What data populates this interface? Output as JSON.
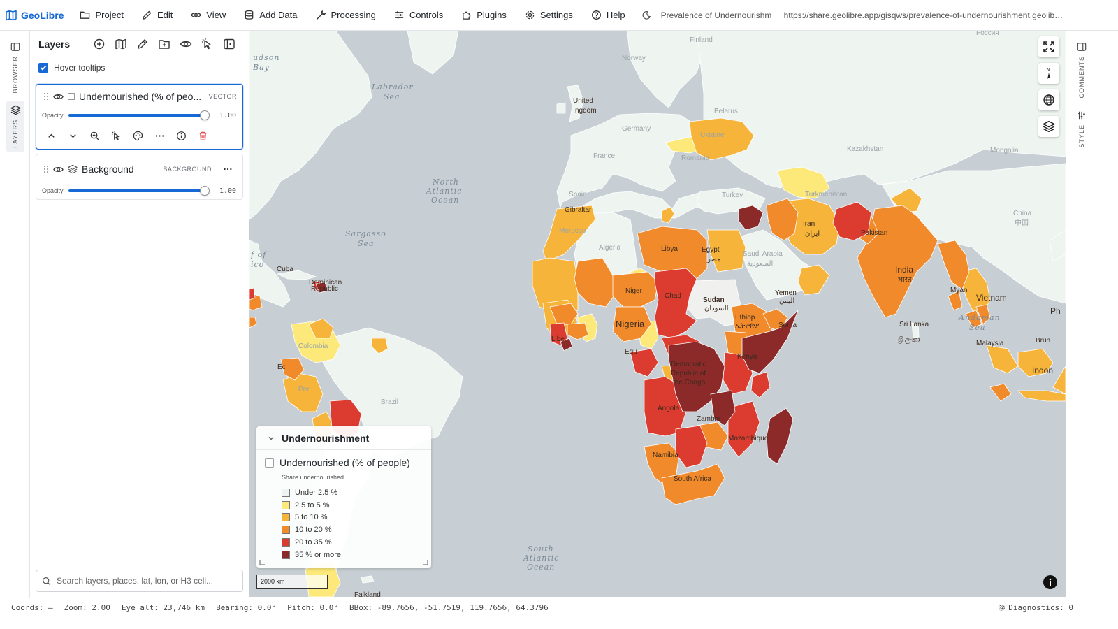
{
  "app": {
    "name": "GeoLibre"
  },
  "menu": [
    {
      "label": "Project",
      "icon": "folder-icon"
    },
    {
      "label": "Edit",
      "icon": "pencil-icon"
    },
    {
      "label": "View",
      "icon": "eye-icon"
    },
    {
      "label": "Add Data",
      "icon": "database-icon"
    },
    {
      "label": "Processing",
      "icon": "wrench-icon"
    },
    {
      "label": "Controls",
      "icon": "sliders-icon"
    },
    {
      "label": "Plugins",
      "icon": "puzzle-icon"
    },
    {
      "label": "Settings",
      "icon": "gear-icon"
    },
    {
      "label": "Help",
      "icon": "help-circle-icon"
    }
  ],
  "header": {
    "map_title": "Prevalence of Undernourishm",
    "url": "https://share.geolibre.app/gisqws/prevalence-of-undernourishment.geolibre.js..."
  },
  "left_rail": {
    "browser": "BROWSER",
    "layers": "LAYERS"
  },
  "right_rail": {
    "comments": "COMMENTS",
    "style": "STYLE"
  },
  "panel": {
    "title": "Layers",
    "hover_tooltips": "Hover tooltips",
    "layers": [
      {
        "name": "Undernourished (% of peo...",
        "badge": "VECTOR",
        "opacity_label": "Opacity",
        "opacity": "1.00",
        "opacity_fraction": 1.0
      },
      {
        "name": "Background",
        "badge": "BACKGROUND",
        "opacity_label": "Opacity",
        "opacity": "1.00",
        "opacity_fraction": 1.0
      }
    ],
    "search_placeholder": "Search layers, places, lat, lon, or H3 cell..."
  },
  "map": {
    "oceans": {
      "hudson": [
        "udson",
        "Bay"
      ],
      "labrador": [
        "Labrador",
        "Sea"
      ],
      "north_atlantic": [
        "North",
        "Atlantic",
        "Ocean"
      ],
      "sargasso": [
        "Sargasso",
        "Sea"
      ],
      "gulf": [
        "f of",
        "ico"
      ],
      "andaman": [
        "Andaman",
        "Sea"
      ],
      "south_atlantic": [
        "South",
        "Atlantic",
        "Ocean"
      ]
    },
    "places": {
      "russia": "Россия",
      "finland": "Finland",
      "norway": "Norway",
      "united_kingdom": "United",
      "uk2": "ngdom",
      "germany": "Germany",
      "france": "France",
      "spain": "Spain",
      "gibraltar": "Gibraltar",
      "algeria": "Algeria",
      "morocco": "Morocco",
      "libya": "Libya",
      "egypt": "Egypt",
      "egypt_ar": "مصر",
      "turkey": "Turkey",
      "ukraine": "Ukraine",
      "iran": "Iran",
      "iran_fa": "ایران",
      "saudi": "Saudi Arabia",
      "saudi_ar": "السعودية",
      "yemen": "Yemen",
      "yemen_ar": "اليمن",
      "sudan": "Sudan",
      "sudan_ar": "السودان",
      "chad": "Chad",
      "niger": "Niger",
      "nigeria": "Nigeria",
      "ethiopia": "Ethiop",
      "ethiopia_am": "ኢትዮጵያ",
      "somalia": "Soma",
      "kenya": "Kenya",
      "drc1": "Democratic",
      "drc2": "Republic of",
      "drc3": "the Congo",
      "angola": "Angola",
      "zambia": "Zambia",
      "mozambique": "Mozambique",
      "namibia": "Namibia",
      "south_africa": "South Africa",
      "equatorial": "Equ",
      "liberia": "Libe",
      "india": "India",
      "india_hi": "भारत",
      "pakistan": "Pakistan",
      "sri_lanka": "Sri Lanka",
      "sri_lanka_si": "ශ්‍රී ලංකා",
      "myanmar": "Myan",
      "vietnam": "Vietnam",
      "malaysia": "Malaysia",
      "brunei": "Brun",
      "indonesia": "Indon",
      "philippines": "Ph",
      "china": "China",
      "china_zh": "中国",
      "mongolia": "Mongolia",
      "kazakhstan": "Kazakhstan",
      "turkmenistan": "Turkmenistan",
      "cuba": "Cuba",
      "dominican": "Dominican",
      "dominican2": "Republic",
      "colombia": "Colombia",
      "ecuador": "Ec",
      "peru": "Per",
      "brazil": "Brazil",
      "falkland": "Falkland",
      "belarus": "Belarus",
      "romania": "Romania"
    },
    "zoom_fullscreen_icon": "fullscreen-icon",
    "compass": "N"
  },
  "legend": {
    "title": "Undernourishment",
    "layer_name": "Undernourished (% of people)",
    "subtitle": "Share undernourished",
    "items": [
      {
        "label": "Under 2.5 %",
        "color": "#eef4f0"
      },
      {
        "label": "2.5 to 5 %",
        "color": "#fce97a"
      },
      {
        "label": "5 to 10 %",
        "color": "#f6b53a"
      },
      {
        "label": "10 to 20 %",
        "color": "#f08a2a"
      },
      {
        "label": "20 to 35 %",
        "color": "#dc3b2f"
      },
      {
        "label": "35 % or more",
        "color": "#8c2a2a"
      }
    ]
  },
  "scale": "2000 km",
  "status": {
    "coords": "Coords: —",
    "zoom": "Zoom: 2.00",
    "eye_alt": "Eye alt: 23,746 km",
    "bearing": "Bearing: 0.0°",
    "pitch": "Pitch: 0.0°",
    "bbox": "BBox: -89.7656, -51.7519, 119.7656, 64.3796",
    "diagnostics": "Diagnostics: 0"
  }
}
